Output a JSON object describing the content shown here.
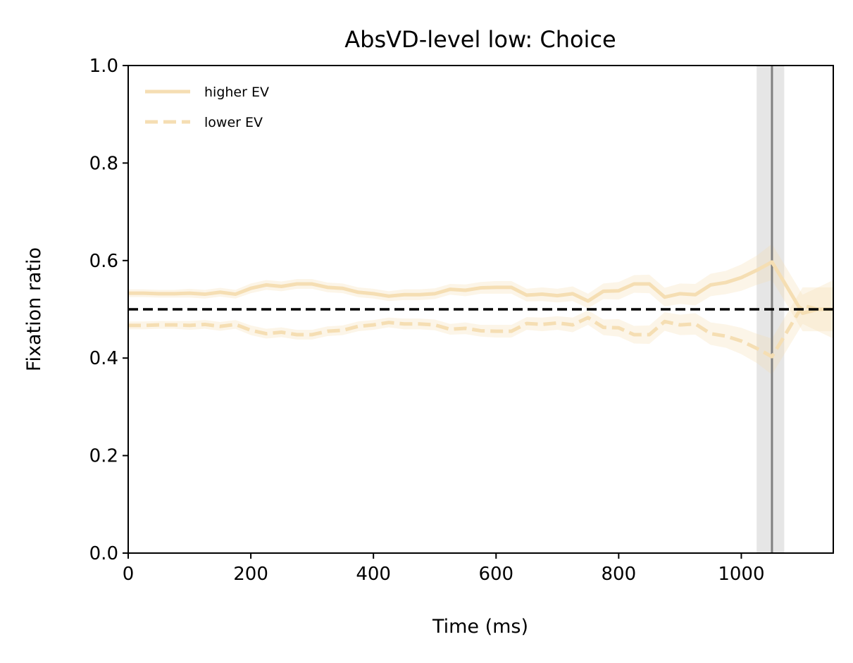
{
  "chart_data": {
    "type": "line",
    "title": "AbsVD-level low: Choice",
    "xlabel": "Time (ms)",
    "ylabel": "Fixation ratio",
    "xlim": [
      0,
      1150
    ],
    "ylim": [
      0,
      1.0
    ],
    "xticks": [
      0,
      200,
      400,
      600,
      800,
      1000
    ],
    "xtick_labels": [
      "0",
      "200",
      "400",
      "600",
      "800",
      "1000"
    ],
    "yticks": [
      0.0,
      0.2,
      0.4,
      0.6,
      0.8,
      1.0
    ],
    "ytick_labels": [
      "0.0",
      "0.2",
      "0.4",
      "0.6",
      "0.8",
      "1.0"
    ],
    "grid": false,
    "legend_position": "top-left",
    "reference_line": {
      "y": 0.5,
      "style": "dashed",
      "color": "#000000"
    },
    "vertical_marker": {
      "x": 1050,
      "band": [
        1025,
        1070
      ],
      "color": "#808080",
      "band_color": "#e6e6e6"
    },
    "series": [
      {
        "name": "higher EV",
        "style": "solid",
        "color": "#f5deb3",
        "x": [
          0,
          25,
          50,
          75,
          100,
          125,
          150,
          175,
          200,
          225,
          250,
          275,
          300,
          325,
          350,
          375,
          400,
          425,
          450,
          475,
          500,
          525,
          550,
          575,
          600,
          625,
          650,
          675,
          700,
          725,
          750,
          775,
          800,
          825,
          850,
          875,
          900,
          925,
          950,
          975,
          1000,
          1025,
          1050,
          1075,
          1100,
          1125,
          1150
        ],
        "y": [
          0.533,
          0.533,
          0.532,
          0.532,
          0.533,
          0.531,
          0.535,
          0.531,
          0.543,
          0.55,
          0.547,
          0.552,
          0.552,
          0.545,
          0.543,
          0.535,
          0.532,
          0.527,
          0.53,
          0.53,
          0.532,
          0.541,
          0.539,
          0.544,
          0.545,
          0.545,
          0.529,
          0.531,
          0.528,
          0.532,
          0.517,
          0.537,
          0.538,
          0.552,
          0.552,
          0.525,
          0.532,
          0.53,
          0.55,
          0.555,
          0.565,
          0.58,
          0.597,
          0.545,
          0.492,
          0.5,
          0.5
        ],
        "ci_lower": [
          0.525,
          0.525,
          0.524,
          0.524,
          0.524,
          0.522,
          0.526,
          0.522,
          0.533,
          0.54,
          0.537,
          0.542,
          0.542,
          0.535,
          0.533,
          0.525,
          0.522,
          0.517,
          0.519,
          0.519,
          0.521,
          0.53,
          0.527,
          0.532,
          0.532,
          0.532,
          0.516,
          0.517,
          0.514,
          0.517,
          0.502,
          0.521,
          0.52,
          0.534,
          0.533,
          0.506,
          0.511,
          0.508,
          0.527,
          0.531,
          0.538,
          0.55,
          0.56,
          0.508,
          0.455,
          0.455,
          0.455
        ],
        "ci_upper": [
          0.541,
          0.541,
          0.54,
          0.54,
          0.542,
          0.54,
          0.544,
          0.54,
          0.553,
          0.56,
          0.557,
          0.562,
          0.562,
          0.555,
          0.553,
          0.545,
          0.542,
          0.537,
          0.541,
          0.541,
          0.543,
          0.552,
          0.551,
          0.556,
          0.558,
          0.558,
          0.542,
          0.545,
          0.542,
          0.547,
          0.532,
          0.553,
          0.556,
          0.57,
          0.571,
          0.544,
          0.553,
          0.552,
          0.573,
          0.579,
          0.592,
          0.61,
          0.634,
          0.582,
          0.53,
          0.545,
          0.56
        ]
      },
      {
        "name": "lower EV",
        "style": "dashed",
        "color": "#f5deb3",
        "x": [
          0,
          25,
          50,
          75,
          100,
          125,
          150,
          175,
          200,
          225,
          250,
          275,
          300,
          325,
          350,
          375,
          400,
          425,
          450,
          475,
          500,
          525,
          550,
          575,
          600,
          625,
          650,
          675,
          700,
          725,
          750,
          775,
          800,
          825,
          850,
          875,
          900,
          925,
          950,
          975,
          1000,
          1025,
          1050,
          1075,
          1100,
          1125,
          1150
        ],
        "y": [
          0.467,
          0.467,
          0.468,
          0.468,
          0.467,
          0.469,
          0.465,
          0.469,
          0.457,
          0.45,
          0.453,
          0.448,
          0.448,
          0.455,
          0.457,
          0.465,
          0.468,
          0.473,
          0.47,
          0.47,
          0.468,
          0.459,
          0.461,
          0.456,
          0.455,
          0.455,
          0.471,
          0.469,
          0.472,
          0.468,
          0.483,
          0.463,
          0.462,
          0.448,
          0.448,
          0.475,
          0.468,
          0.47,
          0.45,
          0.445,
          0.435,
          0.42,
          0.403,
          0.455,
          0.508,
          0.5,
          0.5
        ],
        "ci_lower": [
          0.459,
          0.459,
          0.46,
          0.46,
          0.458,
          0.46,
          0.456,
          0.46,
          0.447,
          0.44,
          0.443,
          0.438,
          0.438,
          0.445,
          0.447,
          0.455,
          0.458,
          0.463,
          0.459,
          0.459,
          0.457,
          0.448,
          0.449,
          0.444,
          0.442,
          0.442,
          0.458,
          0.455,
          0.458,
          0.453,
          0.468,
          0.447,
          0.444,
          0.43,
          0.429,
          0.456,
          0.447,
          0.448,
          0.427,
          0.421,
          0.408,
          0.39,
          0.366,
          0.418,
          0.47,
          0.455,
          0.44
        ],
        "ci_upper": [
          0.475,
          0.475,
          0.476,
          0.476,
          0.476,
          0.478,
          0.474,
          0.478,
          0.467,
          0.46,
          0.463,
          0.458,
          0.458,
          0.465,
          0.467,
          0.475,
          0.478,
          0.483,
          0.481,
          0.481,
          0.479,
          0.47,
          0.473,
          0.468,
          0.468,
          0.468,
          0.484,
          0.483,
          0.486,
          0.483,
          0.498,
          0.479,
          0.48,
          0.466,
          0.467,
          0.494,
          0.489,
          0.492,
          0.473,
          0.469,
          0.462,
          0.45,
          0.44,
          0.492,
          0.545,
          0.545,
          0.545
        ]
      }
    ]
  }
}
